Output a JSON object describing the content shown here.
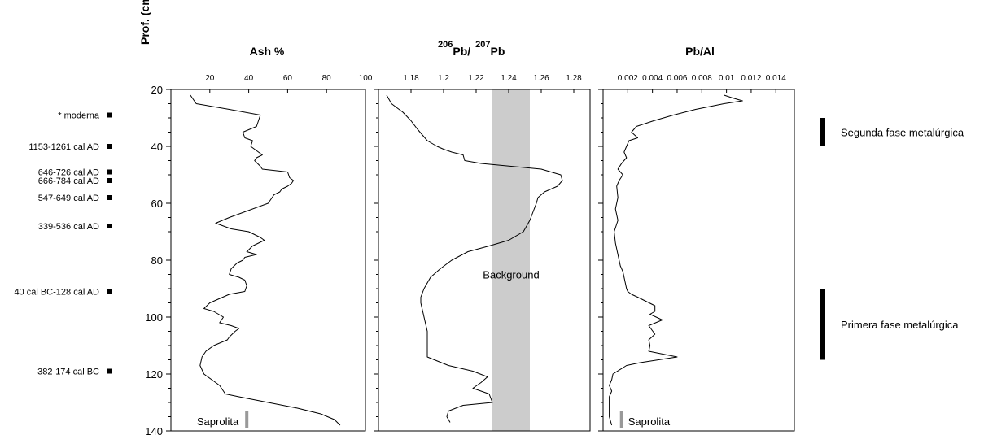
{
  "ylabel": "Prof. (cm)",
  "depth_range": [
    20,
    140
  ],
  "depth_ticks": [
    20,
    40,
    60,
    80,
    100,
    120,
    140
  ],
  "dates": [
    {
      "depth": 29,
      "label": "* moderna"
    },
    {
      "depth": 40,
      "label": "1153-1261 cal AD"
    },
    {
      "depth": 49,
      "label": "646-726 cal AD"
    },
    {
      "depth": 52,
      "label": "666-784 cal AD"
    },
    {
      "depth": 58,
      "label": "547-649 cal AD"
    },
    {
      "depth": 68,
      "label": "339-536 cal AD"
    },
    {
      "depth": 91,
      "label": "40 cal BC-128 cal AD"
    },
    {
      "depth": 119,
      "label": "382-174 cal BC"
    }
  ],
  "phases": [
    {
      "label": "Segunda fase metalúrgica",
      "from": 30,
      "to": 40
    },
    {
      "label": "Primera fase metalúrgica",
      "from": 90,
      "to": 115
    }
  ],
  "chart_data": [
    {
      "type": "line",
      "title": "Ash %",
      "xlim": [
        0,
        100
      ],
      "xticks": [
        20,
        40,
        60,
        80,
        100
      ],
      "ylim": [
        140,
        20
      ],
      "series": [
        {
          "x": [
            10,
            13,
            30,
            46,
            44,
            37,
            38,
            42,
            41,
            43,
            47,
            44,
            43,
            46,
            47,
            60,
            61,
            63,
            62,
            60,
            57,
            56,
            53,
            50,
            38,
            30,
            23,
            31,
            40,
            46,
            48,
            45,
            42,
            39,
            44,
            38,
            37,
            34,
            31,
            30,
            35,
            38,
            39,
            38,
            30,
            20,
            17,
            22,
            27,
            25,
            31,
            35,
            33,
            30,
            29,
            22,
            18,
            16,
            15,
            17,
            21,
            25,
            28,
            35,
            50,
            65,
            77,
            84,
            87
          ],
          "y": [
            22,
            25,
            27,
            29,
            33,
            35,
            37,
            38,
            40,
            41,
            43,
            44,
            45,
            47,
            48,
            49,
            51,
            52,
            53,
            54,
            55,
            56,
            57,
            60,
            63,
            65,
            67,
            69,
            70,
            72,
            73,
            74,
            75,
            77,
            78,
            79,
            80,
            81,
            83,
            85,
            86,
            87,
            89,
            91,
            92,
            95,
            97,
            98,
            100,
            102,
            103,
            104,
            105,
            107,
            108,
            110,
            112,
            114,
            117,
            120,
            122,
            124,
            127,
            128,
            130,
            132,
            134,
            136,
            138
          ]
        }
      ],
      "annotation": {
        "text": "Saprolita",
        "x": 39
      }
    },
    {
      "type": "line",
      "title_main": "Pb/",
      "title_sup1": "206",
      "title_sup2": "207",
      "title_tail": "Pb",
      "xlim": [
        1.16,
        1.29
      ],
      "xticks": [
        1.18,
        1.2,
        1.22,
        1.24,
        1.26,
        1.28
      ],
      "ylim": [
        140,
        20
      ],
      "background_band": {
        "from": 1.23,
        "to": 1.253,
        "label": "Background"
      },
      "series": [
        {
          "x": [
            1.165,
            1.168,
            1.175,
            1.18,
            1.184,
            1.187,
            1.19,
            1.196,
            1.2,
            1.205,
            1.212,
            1.213,
            1.223,
            1.26,
            1.272,
            1.273,
            1.27,
            1.262,
            1.258,
            1.257,
            1.255,
            1.253,
            1.249,
            1.24,
            1.228,
            1.215,
            1.205,
            1.198,
            1.192,
            1.188,
            1.186,
            1.186,
            1.188,
            1.19,
            1.19,
            1.19,
            1.203,
            1.218,
            1.227,
            1.223,
            1.218,
            1.228,
            1.23,
            1.212,
            1.203,
            1.202,
            1.204
          ],
          "y": [
            22,
            25,
            28,
            31,
            34,
            36,
            38,
            40,
            41,
            42,
            43,
            45,
            46,
            48,
            50,
            52,
            54,
            56,
            58,
            60,
            63,
            66,
            70,
            73,
            75,
            77,
            80,
            83,
            86,
            90,
            93,
            95,
            100,
            105,
            110,
            114,
            117,
            119,
            121,
            123,
            125,
            127,
            130,
            131,
            133,
            135,
            137
          ]
        }
      ]
    },
    {
      "type": "line",
      "title": "Pb/Al",
      "xlim": [
        0,
        0.0155
      ],
      "xticks": [
        0.002,
        0.004,
        0.006,
        0.008,
        0.01,
        0.012,
        0.014
      ],
      "xticklabels": [
        "0.002",
        "0.004",
        "0.006",
        "0.008",
        "0.01",
        "0.012",
        "0.014"
      ],
      "ylim": [
        140,
        20
      ],
      "series": [
        {
          "x": [
            0.0098,
            0.0105,
            0.0113,
            0.0098,
            0.0075,
            0.0057,
            0.0041,
            0.0027,
            0.0023,
            0.0028,
            0.0021,
            0.0019,
            0.0017,
            0.0019,
            0.0015,
            0.0012,
            0.0016,
            0.0013,
            0.0011,
            0.0012,
            0.001,
            0.0012,
            0.0009,
            0.001,
            0.0012,
            0.0014,
            0.0016,
            0.0017,
            0.0018,
            0.0019,
            0.002,
            0.0023,
            0.0028,
            0.0042,
            0.0042,
            0.0038,
            0.0048,
            0.0037,
            0.0042,
            0.0037,
            0.0038,
            0.0037,
            0.006,
            0.003,
            0.0019,
            0.0008,
            0.0007,
            0.0005,
            0.0007,
            0.0005,
            0.0005,
            0.0005,
            0.0007
          ],
          "y": [
            22,
            23,
            24,
            25,
            27,
            29,
            31,
            33,
            35,
            37,
            38,
            40,
            42,
            44,
            46,
            48,
            50,
            52,
            54,
            58,
            62,
            66,
            70,
            74,
            78,
            82,
            84,
            86,
            88,
            90,
            91,
            92,
            93,
            96,
            98,
            99,
            101,
            103,
            106,
            108,
            110,
            112,
            114,
            116,
            117,
            120,
            122,
            124,
            126,
            128,
            131,
            135,
            138
          ]
        }
      ],
      "annotation": {
        "text": "Saprolita",
        "x": 0.0015
      }
    }
  ]
}
